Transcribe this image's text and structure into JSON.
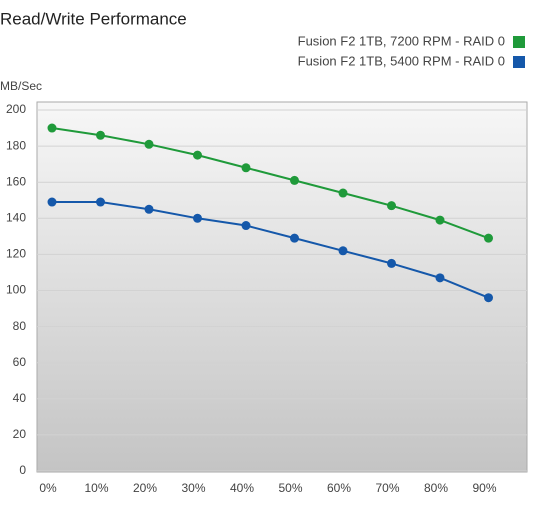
{
  "chart_data": {
    "type": "line",
    "title": "Read/Write Performance",
    "y_label": "MB/Sec",
    "categories": [
      "0%",
      "10%",
      "20%",
      "30%",
      "40%",
      "50%",
      "60%",
      "70%",
      "80%",
      "90%"
    ],
    "series": [
      {
        "name": "Fusion F2 1TB, 7200 RPM - RAID 0",
        "color": "#1f9a3a",
        "values": [
          190,
          186,
          181,
          175,
          168,
          161,
          154,
          147,
          139,
          129
        ]
      },
      {
        "name": "Fusion F2 1TB, 5400 RPM - RAID 0",
        "color": "#1558aa",
        "values": [
          149,
          149,
          145,
          140,
          136,
          129,
          122,
          115,
          107,
          96
        ]
      }
    ],
    "ylim": [
      0,
      200
    ],
    "yticks": [
      0,
      20,
      40,
      60,
      80,
      100,
      120,
      140,
      160,
      180,
      200
    ],
    "grid": true,
    "legend": "top-right"
  }
}
